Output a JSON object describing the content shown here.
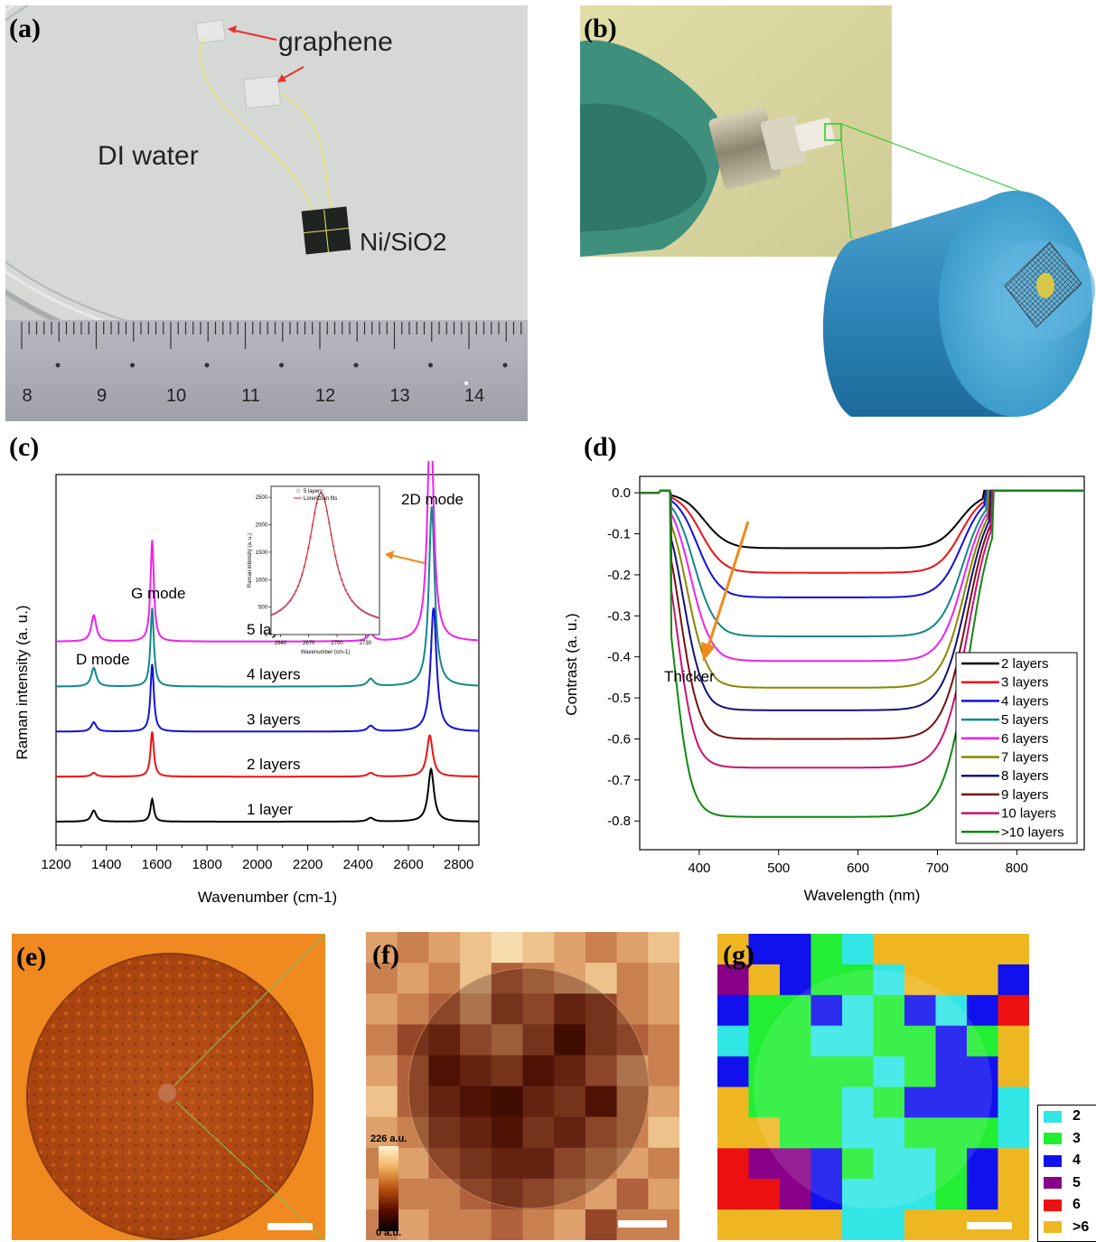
{
  "panels": {
    "a": {
      "label": "(a)",
      "annotations": [
        "graphene",
        "DI water",
        "Ni/SiO2"
      ],
      "ruler_ticks": [
        "8",
        "9",
        "10",
        "11",
        "12",
        "13",
        "14"
      ]
    },
    "b": {
      "label": "(b)"
    },
    "c": {
      "label": "(c)"
    },
    "d": {
      "label": "(d)"
    },
    "e": {
      "label": "(e)"
    },
    "f": {
      "label": "(f)",
      "colorbar_max": "226 a.u.",
      "colorbar_min": "0 a.u."
    },
    "g": {
      "label": "(g)",
      "legend": [
        {
          "label": "2",
          "color": "#33e6e6"
        },
        {
          "label": "3",
          "color": "#22ee33"
        },
        {
          "label": "4",
          "color": "#1111ee"
        },
        {
          "label": "5",
          "color": "#880088"
        },
        {
          "label": "6",
          "color": "#ee1111"
        },
        {
          "label": ">6",
          "color": "#eeb722"
        }
      ]
    }
  },
  "chart_data": [
    {
      "id": "c",
      "type": "line",
      "xlabel": "Wavenumber (cm-1)",
      "ylabel": "Raman intensity (a. u.)",
      "xlim": [
        1200,
        2880
      ],
      "xticks": [
        1200,
        1400,
        1600,
        1800,
        2000,
        2200,
        2400,
        2600,
        2800
      ],
      "annotations": [
        "D mode",
        "G mode",
        "2D mode"
      ],
      "peak_positions": {
        "D": 1350,
        "G": 1582,
        "D2": 2450,
        "2D": 2690
      },
      "series": [
        {
          "name": "1 layer",
          "color": "#000000",
          "baseline": 0,
          "D": 3,
          "G": 6,
          "D2": 1,
          "2D": 14,
          "c2D": 2690
        },
        {
          "name": "2 layers",
          "color": "#ee1111",
          "baseline": 12,
          "D": 1,
          "G": 12,
          "D2": 1,
          "2D": 11,
          "c2D": 2685
        },
        {
          "name": "3 layers",
          "color": "#1111dd",
          "baseline": 24,
          "D": 2.5,
          "G": 18,
          "D2": 1.5,
          "2D": 33,
          "c2D": 2700
        },
        {
          "name": "4 layers",
          "color": "#118888",
          "baseline": 36,
          "D": 5,
          "G": 21,
          "D2": 2,
          "2D": 48,
          "c2D": 2693
        },
        {
          "name": "5 layers",
          "color": "#ee22ee",
          "baseline": 48,
          "D": 7,
          "G": 27,
          "D2": 2,
          "2D": 64,
          "c2D": 2688
        }
      ],
      "inset": {
        "xlabel": "Wavenumber (cm-1)",
        "ylabel": "Raman intensity (a. u.)",
        "legend": [
          "5 layers",
          "Lorentzian fits"
        ],
        "xticks": [
          2640,
          2670,
          2700,
          2730
        ],
        "yticks": [
          0,
          500,
          1000,
          1500,
          2000,
          2500
        ],
        "xlim": [
          2630,
          2745
        ],
        "ylim": [
          0,
          2700
        ],
        "peak_center": 2683,
        "peak_height": 2430,
        "peak_hwhm": 16,
        "offset": 150
      }
    },
    {
      "id": "d",
      "type": "line",
      "xlabel": "Wavelength (nm)",
      "ylabel": "Contrast (a. u.)",
      "xlim": [
        325,
        885
      ],
      "ylim": [
        -0.87,
        0.04
      ],
      "xticks": [
        400,
        500,
        600,
        700,
        800
      ],
      "yticks": [
        0.0,
        -0.1,
        -0.2,
        -0.3,
        -0.4,
        -0.5,
        -0.6,
        -0.7,
        -0.8
      ],
      "annotation": "Thicker",
      "series": [
        {
          "name": "2 layers",
          "color": "#000000",
          "min": -0.135
        },
        {
          "name": "3 layers",
          "color": "#ee1111",
          "min": -0.195
        },
        {
          "name": "4 layers",
          "color": "#1111dd",
          "min": -0.255
        },
        {
          "name": "5 layers",
          "color": "#118888",
          "min": -0.35
        },
        {
          "name": "6 layers",
          "color": "#ee22ee",
          "min": -0.41
        },
        {
          "name": "7 layers",
          "color": "#888800",
          "min": -0.475
        },
        {
          "name": "8 layers",
          "color": "#111177",
          "min": -0.53
        },
        {
          "name": "9 layers",
          "color": "#771111",
          "min": -0.6
        },
        {
          "name": "10 layers",
          "color": "#cc1177",
          "min": -0.67
        },
        {
          "name": ">10 layers",
          "color": "#118811",
          "min": -0.79
        }
      ]
    }
  ]
}
